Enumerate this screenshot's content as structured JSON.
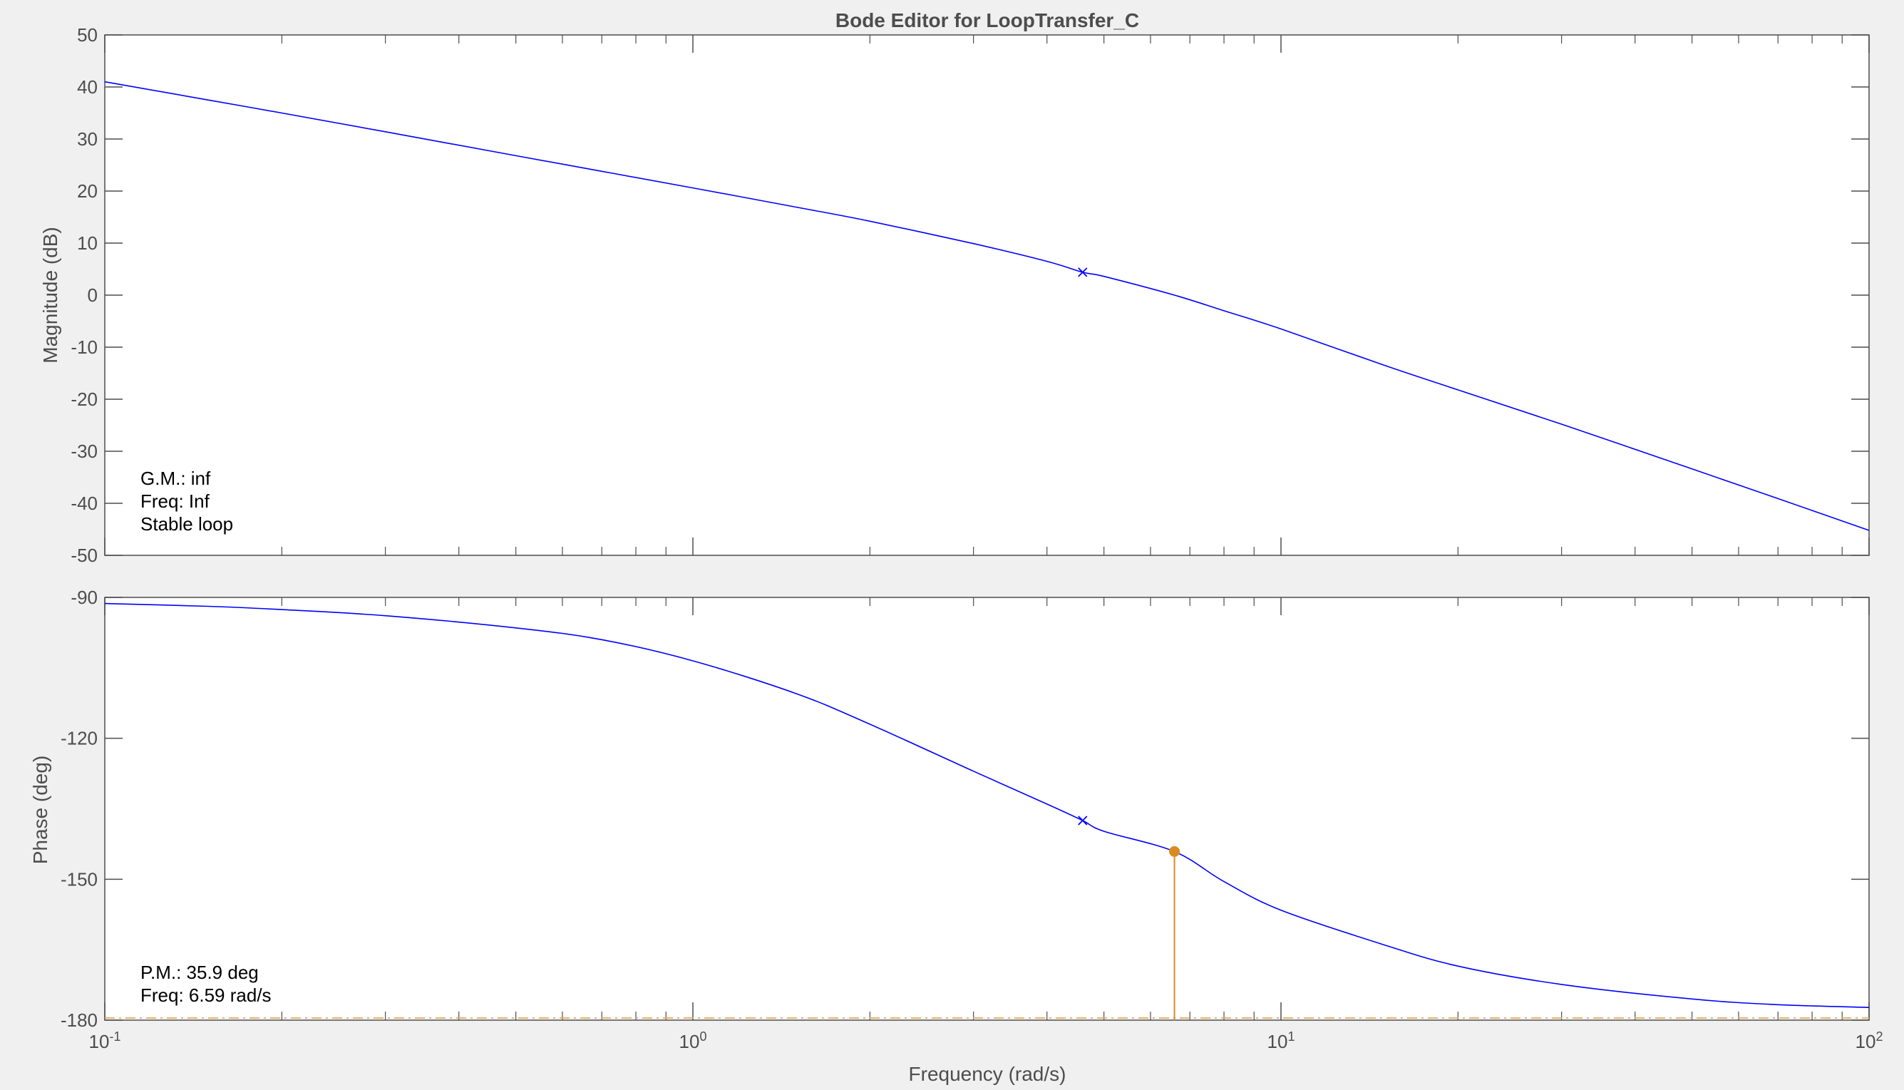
{
  "chart_data": {
    "type": "line",
    "title": "Bode Editor for LoopTransfer_C",
    "xlabel": "Frequency (rad/s)",
    "xscale": "log",
    "xlim": [
      0.1,
      100
    ],
    "x_ticks": [
      {
        "base": "10",
        "exp": "-1"
      },
      {
        "base": "10",
        "exp": "0"
      },
      {
        "base": "10",
        "exp": "1"
      },
      {
        "base": "10",
        "exp": "2"
      }
    ],
    "colors": {
      "response": "#0000ff",
      "margin": "#d98c1f",
      "reference": "#e3a857",
      "axes": "#4d4d4d"
    },
    "magnitude": {
      "ylabel": "Magnitude (dB)",
      "ylim": [
        -50,
        50
      ],
      "yticks": [
        "50",
        "40",
        "30",
        "20",
        "10",
        "0",
        "-10",
        "-20",
        "-30",
        "-40",
        "-50"
      ],
      "x": [
        0.1,
        0.15,
        0.2,
        0.3,
        0.5,
        0.7,
        1.0,
        1.5,
        2.0,
        3.0,
        4.0,
        4.6,
        5.0,
        6.59,
        8.0,
        10.0,
        15.0,
        20.0,
        30.0,
        50.0,
        70.0,
        100.0
      ],
      "y": [
        41.0,
        37.5,
        35.0,
        31.4,
        26.8,
        23.8,
        20.6,
        16.9,
        14.2,
        9.9,
        6.5,
        4.4,
        3.6,
        0.0,
        -3.0,
        -6.5,
        -13.5,
        -18.2,
        -24.8,
        -33.4,
        -39.1,
        -45.2
      ],
      "marker": {
        "x": 4.6,
        "y": 4.4
      },
      "annotations": [
        "G.M.: inf",
        "Freq: Inf",
        "Stable loop"
      ]
    },
    "phase": {
      "ylabel": "Phase (deg)",
      "ylim": [
        -180,
        -90
      ],
      "yticks": [
        "-90",
        "-120",
        "-150",
        "-180"
      ],
      "x": [
        0.1,
        0.15,
        0.2,
        0.3,
        0.5,
        0.7,
        1.0,
        1.5,
        2.0,
        3.0,
        4.0,
        4.6,
        5.0,
        6.59,
        8.0,
        10.0,
        15.0,
        20.0,
        30.0,
        50.0,
        70.0,
        100.0
      ],
      "y": [
        -91.3,
        -91.9,
        -92.6,
        -93.9,
        -96.5,
        -99.0,
        -103.5,
        -110.5,
        -117.0,
        -127.0,
        -134.0,
        -137.5,
        -139.8,
        -144.1,
        -150.5,
        -156.6,
        -164.0,
        -168.5,
        -172.4,
        -175.5,
        -176.7,
        -177.3
      ],
      "marker": {
        "x": 4.6,
        "y": -137.5
      },
      "margin_point": {
        "x": 6.59,
        "y": -144.1
      },
      "reference_line": -180,
      "annotations": [
        "P.M.: 35.9 deg",
        "Freq: 6.59 rad/s"
      ]
    }
  }
}
